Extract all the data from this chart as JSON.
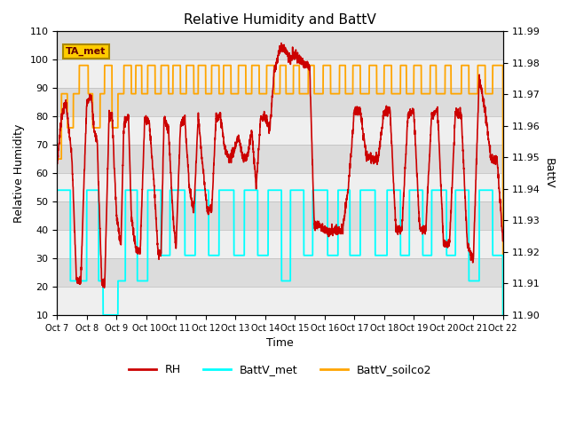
{
  "title": "Relative Humidity and BattV",
  "xlabel": "Time",
  "ylabel_left": "Relative Humidity",
  "ylabel_right": "BattV",
  "ylim_left": [
    10,
    110
  ],
  "ylim_right": [
    11.9,
    11.99
  ],
  "yticks_left": [
    10,
    20,
    30,
    40,
    50,
    60,
    70,
    80,
    90,
    100,
    110
  ],
  "yticks_right": [
    11.9,
    11.91,
    11.92,
    11.93,
    11.94,
    11.95,
    11.96,
    11.97,
    11.98,
    11.99
  ],
  "xtick_labels": [
    "Oct 7",
    "Oct 8",
    "Oct 9",
    "Oct 10",
    "Oct 11",
    "Oct 12",
    "Oct 13",
    "Oct 14",
    "Oct 15",
    "Oct 16",
    "Oct 17",
    "Oct 18",
    "Oct 19",
    "Oct 20",
    "Oct 21",
    "Oct 22"
  ],
  "annotation_text": "TA_met",
  "annotation_bg": "#FFCC00",
  "annotation_edge": "#AA8800",
  "plot_bg_color": "#DCDCDC",
  "stripe_color": "#F0F0F0",
  "rh_color": "#CC0000",
  "battv_met_color": "#00FFFF",
  "battv_soilco2_color": "#FFA500",
  "legend_entries": [
    "RH",
    "BattV_met",
    "BattV_soilco2"
  ],
  "bv_met_high": 54,
  "bv_met_low": 22,
  "bv_met_vlow": 10,
  "bv_soilco2_high": 98,
  "bv_soilco2_low": 88
}
